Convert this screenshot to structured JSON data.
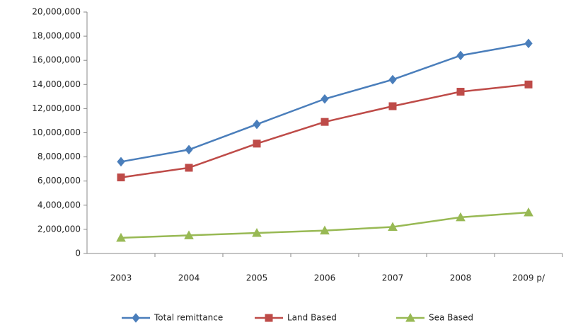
{
  "chart_data": {
    "type": "line",
    "categories": [
      "2003",
      "2004",
      "2005",
      "2006",
      "2007",
      "2008",
      "2009 p/"
    ],
    "series": [
      {
        "name": "Total remittance",
        "color": "#4a7ebb",
        "marker": "diamond",
        "values": [
          7600000,
          8600000,
          10700000,
          12800000,
          14400000,
          16400000,
          17400000
        ]
      },
      {
        "name": "Land Based",
        "color": "#be4b48",
        "marker": "square",
        "values": [
          6300000,
          7100000,
          9100000,
          10900000,
          12200000,
          13400000,
          14000000
        ]
      },
      {
        "name": "Sea Based",
        "color": "#98b954",
        "marker": "triangle",
        "values": [
          1300000,
          1500000,
          1700000,
          1900000,
          2200000,
          3000000,
          3400000
        ]
      }
    ],
    "ylim": [
      0,
      20000000
    ],
    "yticks": [
      0,
      {
        "value": 2000000,
        "label": "2,000,000"
      },
      {
        "value": 4000000,
        "label": "4,000,000"
      },
      {
        "value": 6000000,
        "label": "6,000,000"
      },
      {
        "value": 8000000,
        "label": "8,000,000"
      },
      {
        "value": 10000000,
        "label": "10,000,000"
      },
      {
        "value": 12000000,
        "label": "12,000,000"
      },
      {
        "value": 14000000,
        "label": "14,000,000"
      },
      {
        "value": 16000000,
        "label": "16,000,000"
      },
      {
        "value": 18000000,
        "label": "18,000,000"
      },
      {
        "value": 20000000,
        "label": "20,000,000"
      }
    ],
    "grid": false,
    "legend": "bottom"
  }
}
